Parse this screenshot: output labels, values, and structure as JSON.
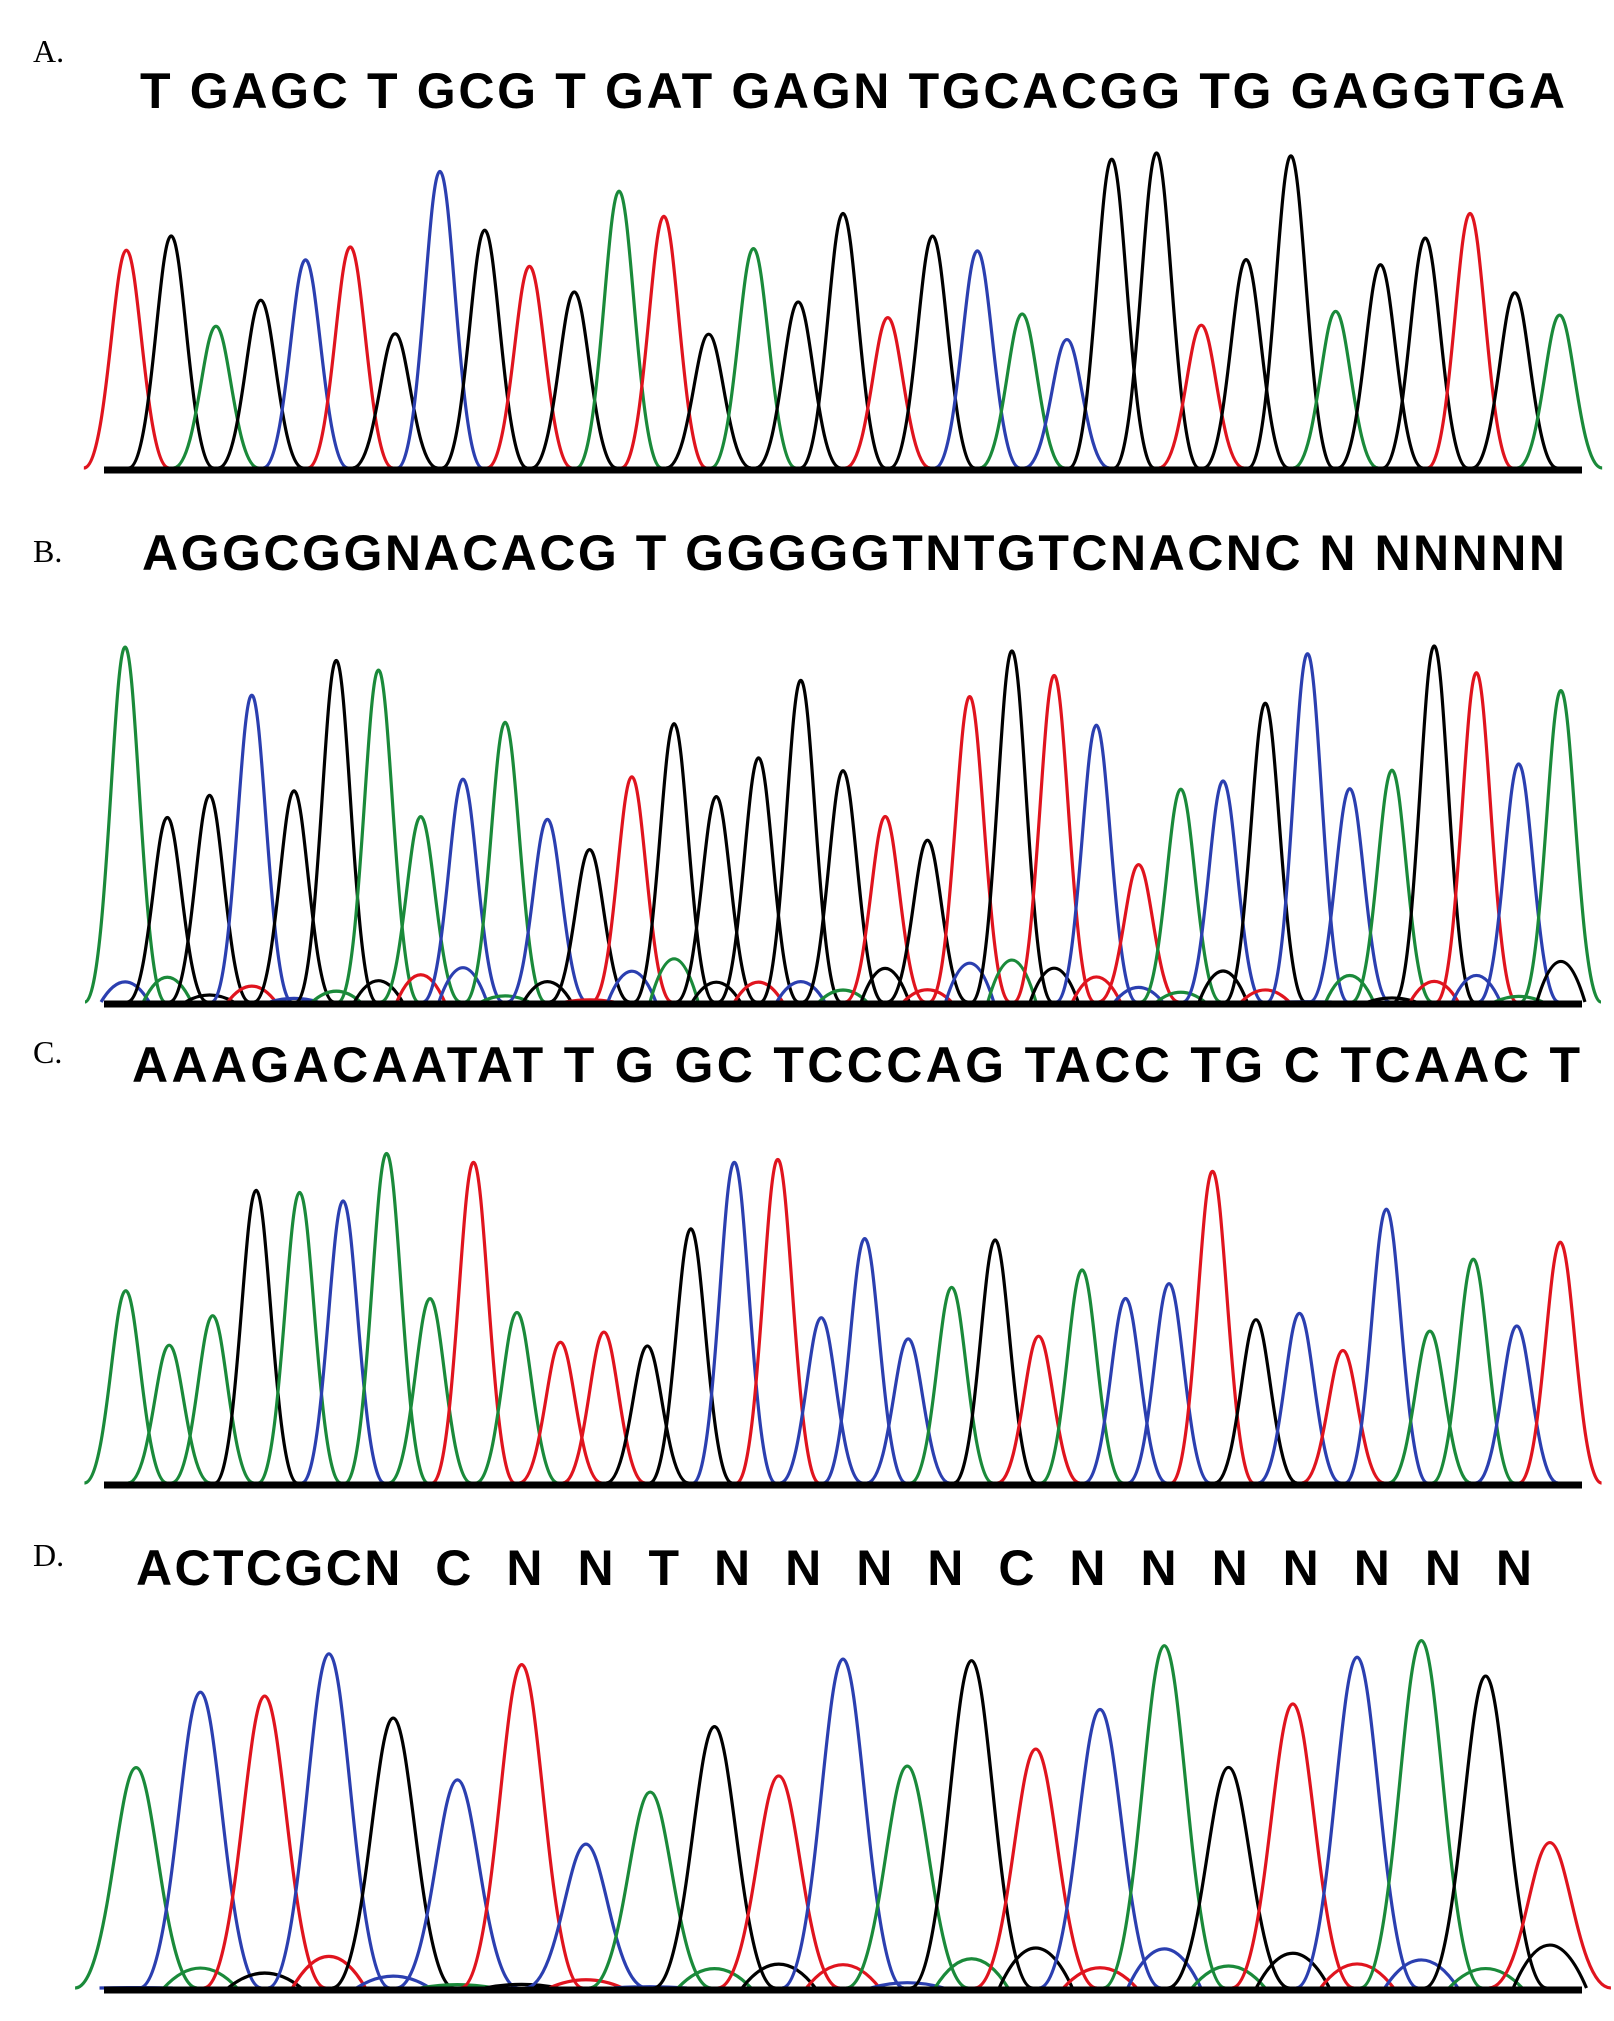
{
  "panels": [
    {
      "label": "A.",
      "sequence": "T GAGC T GCG T GAT GAGN TGCACGG TG GAGGTGA"
    },
    {
      "label": "B.",
      "sequence": "AGGCGGNACACG T GGGGGTNTGTCNACNC N NNNNN"
    },
    {
      "label": "C.",
      "sequence": "AAAGACAATAT T G GC TCCCAG TACC TG C TCAAC T"
    },
    {
      "label": "D.",
      "sequence": "ACTCGCN  C  N  N  T  N  N  N  N  C  N  N  N  N  N  N  N"
    }
  ]
}
